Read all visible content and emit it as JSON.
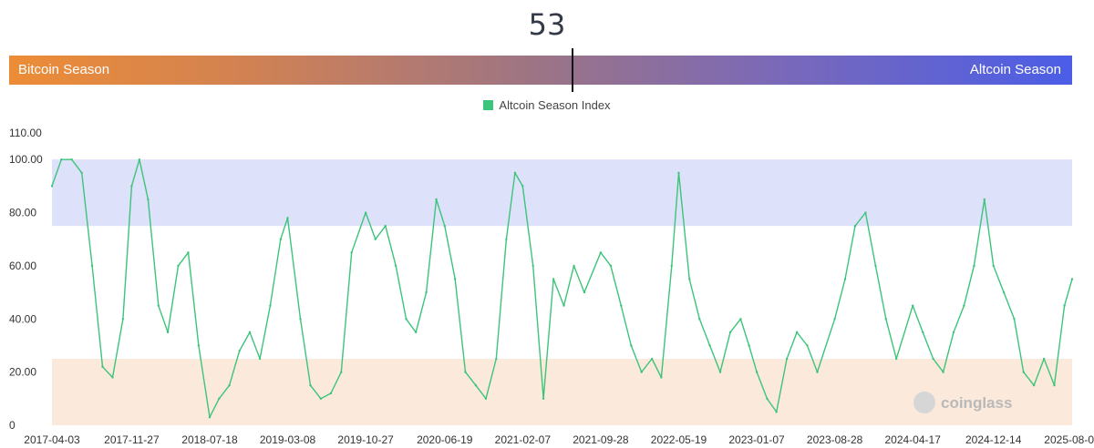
{
  "gauge": {
    "value": "53",
    "left_label": "Bitcoin Season",
    "right_label": "Altcoin Season",
    "marker_fraction": 0.53
  },
  "legend": {
    "label": "Altcoin Season Index",
    "color": "#3cc47a"
  },
  "watermark": "coinglass",
  "chart_data": {
    "type": "line",
    "title": "",
    "xlabel": "",
    "ylabel": "",
    "ylim": [
      0,
      110
    ],
    "y_ticks": [
      "0",
      "20.00",
      "40.00",
      "60.00",
      "80.00",
      "100.00",
      "110.00"
    ],
    "x_ticks": [
      "2017-04-03",
      "2017-11-27",
      "2018-07-18",
      "2019-03-08",
      "2019-10-27",
      "2020-06-19",
      "2021-02-07",
      "2021-09-28",
      "2022-05-19",
      "2023-01-07",
      "2023-08-28",
      "2024-04-17",
      "2024-12-14",
      "2025-08-06"
    ],
    "bands": [
      {
        "from": 75,
        "to": 100,
        "color": "#dde1fa"
      },
      {
        "from": 0,
        "to": 25,
        "color": "#fbe9db"
      }
    ],
    "grid": false,
    "legend_position": "top-center",
    "series": [
      {
        "name": "Altcoin Season Index",
        "color": "#3cc47a",
        "x": [
          "2017-04-03",
          "2017-05-01",
          "2017-06-01",
          "2017-07-01",
          "2017-08-01",
          "2017-09-01",
          "2017-10-01",
          "2017-11-01",
          "2017-11-27",
          "2017-12-20",
          "2018-01-15",
          "2018-02-15",
          "2018-03-15",
          "2018-04-15",
          "2018-05-15",
          "2018-06-15",
          "2018-07-18",
          "2018-08-15",
          "2018-09-15",
          "2018-10-15",
          "2018-11-15",
          "2018-12-15",
          "2019-01-15",
          "2019-02-15",
          "2019-03-08",
          "2019-04-15",
          "2019-05-15",
          "2019-06-15",
          "2019-07-15",
          "2019-08-15",
          "2019-09-15",
          "2019-10-27",
          "2019-11-25",
          "2019-12-25",
          "2020-01-25",
          "2020-02-25",
          "2020-03-25",
          "2020-04-25",
          "2020-05-25",
          "2020-06-19",
          "2020-07-20",
          "2020-08-20",
          "2020-09-20",
          "2020-10-20",
          "2020-11-20",
          "2020-12-20",
          "2021-01-15",
          "2021-02-07",
          "2021-03-10",
          "2021-04-10",
          "2021-05-10",
          "2021-06-10",
          "2021-07-10",
          "2021-08-10",
          "2021-09-28",
          "2021-10-28",
          "2021-11-28",
          "2021-12-28",
          "2022-01-28",
          "2022-02-28",
          "2022-03-28",
          "2022-04-28",
          "2022-05-19",
          "2022-06-20",
          "2022-07-20",
          "2022-08-20",
          "2022-09-20",
          "2022-10-20",
          "2022-11-20",
          "2022-12-15",
          "2023-01-07",
          "2023-02-07",
          "2023-03-07",
          "2023-04-07",
          "2023-05-07",
          "2023-06-07",
          "2023-07-07",
          "2023-08-28",
          "2023-09-28",
          "2023-10-28",
          "2023-11-28",
          "2023-12-28",
          "2024-01-28",
          "2024-02-28",
          "2024-04-17",
          "2024-05-17",
          "2024-06-17",
          "2024-07-17",
          "2024-08-17",
          "2024-09-17",
          "2024-10-17",
          "2024-11-17",
          "2024-12-14",
          "2025-01-14",
          "2025-02-14",
          "2025-03-14",
          "2025-04-14",
          "2025-05-14",
          "2025-06-14",
          "2025-07-14",
          "2025-08-06"
        ],
        "values": [
          90,
          100,
          100,
          95,
          60,
          22,
          18,
          40,
          90,
          100,
          85,
          45,
          35,
          60,
          65,
          30,
          3,
          10,
          15,
          28,
          35,
          25,
          45,
          70,
          78,
          40,
          15,
          10,
          12,
          20,
          65,
          80,
          70,
          75,
          60,
          40,
          35,
          50,
          85,
          75,
          55,
          20,
          15,
          10,
          25,
          70,
          95,
          90,
          60,
          10,
          55,
          45,
          60,
          50,
          65,
          60,
          45,
          30,
          20,
          25,
          18,
          60,
          95,
          55,
          40,
          30,
          20,
          35,
          40,
          30,
          20,
          10,
          5,
          25,
          35,
          30,
          20,
          40,
          55,
          75,
          80,
          60,
          40,
          25,
          45,
          35,
          25,
          20,
          35,
          45,
          60,
          85,
          60,
          50,
          40,
          20,
          15,
          25,
          15,
          45,
          55
        ]
      }
    ]
  }
}
